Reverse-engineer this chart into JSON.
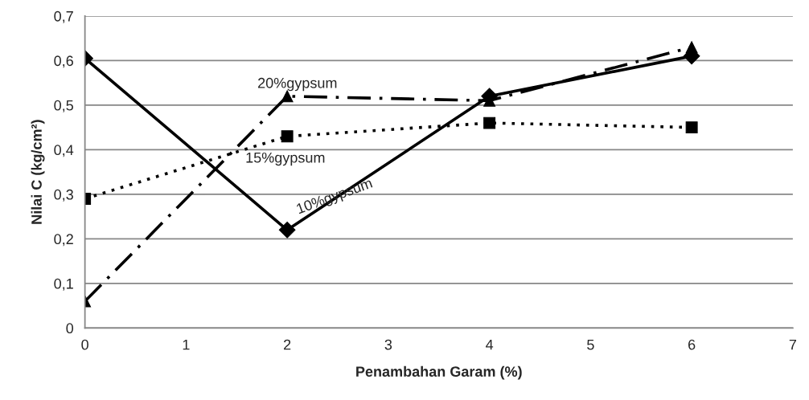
{
  "chart_data": {
    "type": "line",
    "xlabel": "Penambahan Garam (%)",
    "ylabel": "Nilai C (kg/cm²)",
    "x": [
      0,
      2,
      4,
      6
    ],
    "series": [
      {
        "name": "10%gypsum",
        "color": "#000000",
        "marker": "diamond",
        "line_style": "solid",
        "values": [
          0.605,
          0.22,
          0.52,
          0.61
        ]
      },
      {
        "name": "15%gypsum",
        "color": "#000000",
        "marker": "square",
        "line_style": "dotted",
        "values": [
          0.29,
          0.43,
          0.46,
          0.45
        ]
      },
      {
        "name": "20%gypsum",
        "color": "#000000",
        "marker": "triangle",
        "line_style": "dashed",
        "values": [
          0.06,
          0.52,
          0.51,
          0.63
        ]
      }
    ],
    "xlim": [
      0,
      7
    ],
    "xticks": [
      0,
      1,
      2,
      3,
      4,
      5,
      6,
      7
    ],
    "ylim": [
      0,
      0.7
    ],
    "yticks": [
      0,
      {
        "value": 0.1,
        "label": "0,1"
      },
      {
        "value": 0.2,
        "label": "0,2"
      },
      {
        "value": 0.3,
        "label": "0,3"
      },
      {
        "value": 0.4,
        "label": "0,4"
      },
      {
        "value": 0.5,
        "label": "0,5"
      },
      {
        "value": 0.6,
        "label": "0,6"
      },
      {
        "value": 0.7,
        "label": "0,7"
      }
    ],
    "grid": "y",
    "legend": false
  }
}
